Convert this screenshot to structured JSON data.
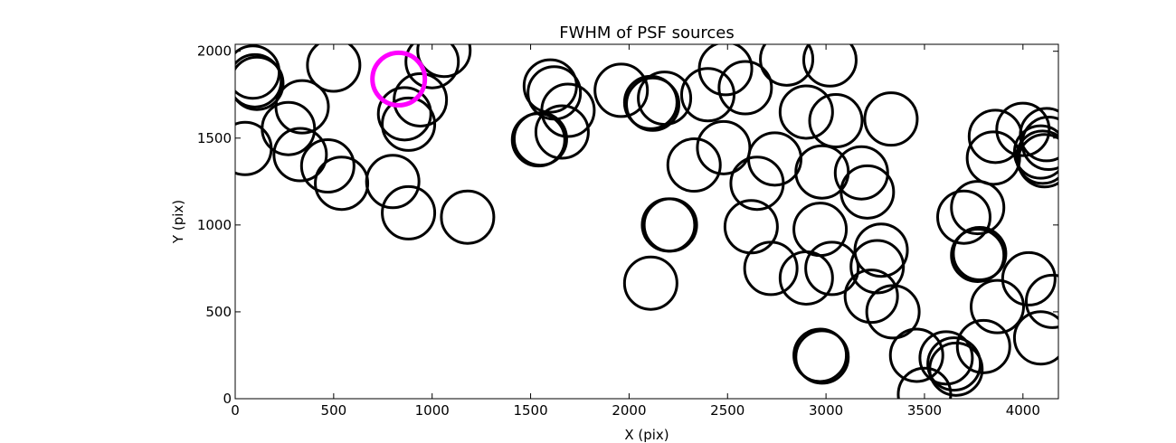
{
  "chart_data": {
    "type": "scatter",
    "title": "FWHM of PSF sources",
    "xlabel": "X (pix)",
    "ylabel": "Y (pix)",
    "xlim": [
      0,
      4180
    ],
    "ylim": [
      0,
      2040
    ],
    "xticks": [
      0,
      500,
      1000,
      1500,
      2000,
      2500,
      3000,
      3500,
      4000
    ],
    "yticks": [
      0,
      500,
      1000,
      1500,
      2000
    ],
    "grid": false,
    "marker": "open-circle",
    "marker_color": "#000000",
    "highlight_color": "#ff00ff",
    "sources": [
      [
        90,
        1880
      ],
      [
        100,
        1830
      ],
      [
        110,
        1815
      ],
      [
        270,
        1555
      ],
      [
        340,
        1680
      ],
      [
        330,
        1405
      ],
      [
        470,
        1340
      ],
      [
        540,
        1240
      ],
      [
        500,
        1920
      ],
      [
        50,
        1440
      ],
      [
        800,
        1250
      ],
      [
        880,
        1070
      ],
      [
        1180,
        1045
      ],
      [
        860,
        1640
      ],
      [
        880,
        1580
      ],
      [
        940,
        1720
      ],
      [
        1000,
        1940
      ],
      [
        1060,
        2005
      ],
      [
        1540,
        1490
      ],
      [
        1550,
        1495
      ],
      [
        1600,
        1800
      ],
      [
        1620,
        1760
      ],
      [
        1660,
        1535
      ],
      [
        1690,
        1660
      ],
      [
        1960,
        1775
      ],
      [
        2110,
        1705
      ],
      [
        2120,
        1695
      ],
      [
        2180,
        1730
      ],
      [
        2210,
        1000
      ],
      [
        2200,
        1000
      ],
      [
        2110,
        665
      ],
      [
        2400,
        1750
      ],
      [
        2490,
        1900
      ],
      [
        2590,
        1790
      ],
      [
        2480,
        1445
      ],
      [
        2330,
        1345
      ],
      [
        2650,
        1240
      ],
      [
        2620,
        990
      ],
      [
        2720,
        750
      ],
      [
        2740,
        1380
      ],
      [
        2800,
        1955
      ],
      [
        2900,
        1650
      ],
      [
        3020,
        1950
      ],
      [
        3050,
        1600
      ],
      [
        2980,
        1305
      ],
      [
        2970,
        975
      ],
      [
        2900,
        695
      ],
      [
        3030,
        750
      ],
      [
        2970,
        250
      ],
      [
        2980,
        240
      ],
      [
        3180,
        1300
      ],
      [
        3210,
        1190
      ],
      [
        3230,
        590
      ],
      [
        3260,
        760
      ],
      [
        3280,
        855
      ],
      [
        3330,
        1610
      ],
      [
        3340,
        500
      ],
      [
        3460,
        250
      ],
      [
        3500,
        25
      ],
      [
        3610,
        235
      ],
      [
        3650,
        200
      ],
      [
        3660,
        170
      ],
      [
        3700,
        1045
      ],
      [
        3770,
        1100
      ],
      [
        3780,
        835
      ],
      [
        3770,
        825
      ],
      [
        3800,
        300
      ],
      [
        3850,
        1385
      ],
      [
        3860,
        1510
      ],
      [
        3870,
        530
      ],
      [
        4000,
        1550
      ],
      [
        4030,
        690
      ],
      [
        4090,
        350
      ],
      [
        4090,
        1420
      ],
      [
        4100,
        1390
      ],
      [
        4110,
        1370
      ],
      [
        4120,
        1520
      ],
      [
        4130,
        1470
      ],
      [
        4150,
        560
      ]
    ],
    "highlight": [
      830,
      1840
    ]
  }
}
